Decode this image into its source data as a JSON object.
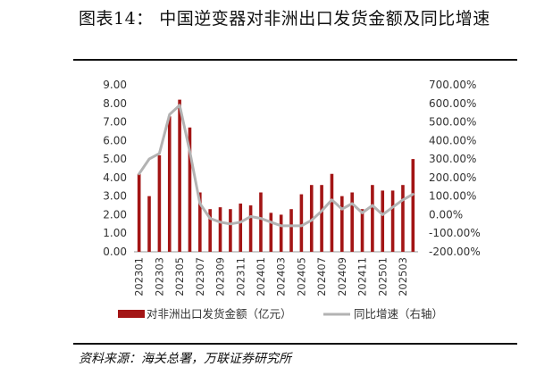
{
  "header": {
    "title": "图表14： 中国逆变器对非洲出口发货金额及同比增速"
  },
  "footer": {
    "source": "资料来源：海关总署，万联证券研究所"
  },
  "chart_data": {
    "type": "bar+line",
    "categories": [
      "202301",
      "202302",
      "202303",
      "202304",
      "202305",
      "202306",
      "202307",
      "202308",
      "202309",
      "202310",
      "202311",
      "202312",
      "202401",
      "202402",
      "202403",
      "202404",
      "202405",
      "202406",
      "202407",
      "202408",
      "202409",
      "202410",
      "202411",
      "202412",
      "202501",
      "202502",
      "202503",
      "202504"
    ],
    "x_tick_labels": [
      "202301",
      "202303",
      "202305",
      "202307",
      "202309",
      "202311",
      "202401",
      "202403",
      "202405",
      "202407",
      "202409",
      "202411",
      "202501",
      "202503"
    ],
    "left_axis": {
      "ylim": [
        0,
        9
      ],
      "ticks": [
        "9.00",
        "8.00",
        "7.00",
        "6.00",
        "5.00",
        "4.00",
        "3.00",
        "2.00",
        "1.00",
        "0.00"
      ]
    },
    "right_axis": {
      "ylim": [
        -200,
        700
      ],
      "ticks": [
        "700.00%",
        "600.00%",
        "500.00%",
        "400.00%",
        "300.00%",
        "200.00%",
        "100.00%",
        "0.00%",
        "-100.00%",
        "-200.00%"
      ]
    },
    "series": [
      {
        "name": "对非洲出口发货金额（亿元）",
        "type": "bar",
        "axis": "left",
        "color": "#a31515",
        "values": [
          4.2,
          3.0,
          5.2,
          7.3,
          8.2,
          6.7,
          3.2,
          2.3,
          2.4,
          2.3,
          2.6,
          2.5,
          3.2,
          2.1,
          2.0,
          2.3,
          3.1,
          3.6,
          3.6,
          4.2,
          3.0,
          3.2,
          2.3,
          3.6,
          3.3,
          3.3,
          3.6,
          5.0
        ]
      },
      {
        "name": "同比增速（右轴）",
        "type": "line",
        "axis": "right",
        "color": "#b3b3b3",
        "values": [
          220,
          300,
          330,
          540,
          590,
          340,
          60,
          -20,
          -40,
          -50,
          -40,
          -10,
          -20,
          -40,
          -60,
          -60,
          -60,
          -30,
          20,
          80,
          30,
          60,
          10,
          50,
          0,
          40,
          80,
          110
        ]
      }
    ],
    "legend": {
      "position": "bottom",
      "labels": [
        "对非洲出口发货金额（亿元）",
        "同比增速（右轴）"
      ]
    }
  }
}
